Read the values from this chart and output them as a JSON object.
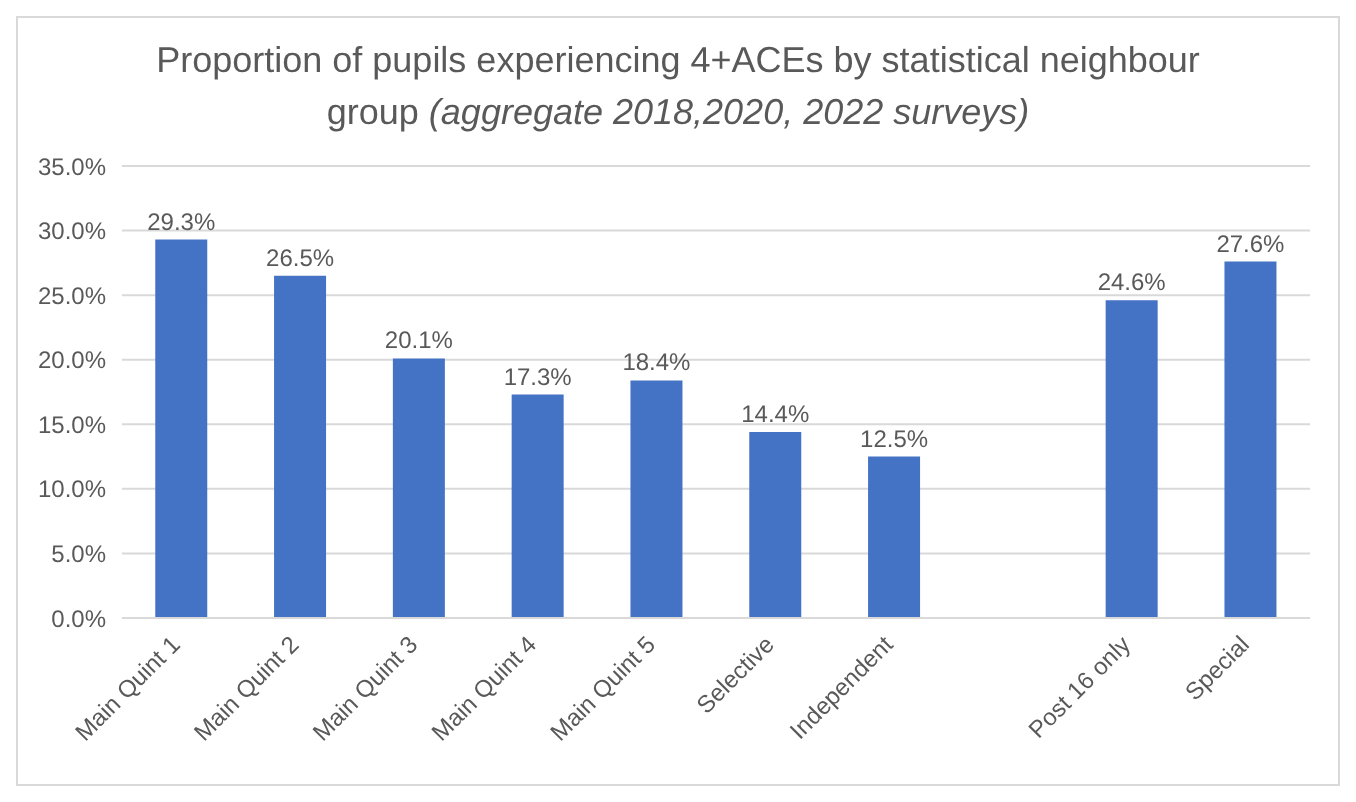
{
  "chart_data": {
    "type": "bar",
    "title": "Proportion of pupils experiencing 4+ACEs by statistical neighbour group",
    "subtitle": "(aggregate 2018,2020, 2022 surveys)",
    "categories": [
      "Main Quint 1",
      "Main Quint 2",
      "Main Quint 3",
      "Main Quint 4",
      "Main Quint 5",
      "Selective",
      "Independent",
      null,
      "Post 16 only",
      "Special"
    ],
    "values": [
      29.3,
      26.5,
      20.1,
      17.3,
      18.4,
      14.4,
      12.5,
      null,
      24.6,
      27.6
    ],
    "value_labels": [
      "29.3%",
      "26.5%",
      "20.1%",
      "17.3%",
      "18.4%",
      "14.4%",
      "12.5%",
      null,
      "24.6%",
      "27.6%"
    ],
    "color": "#4472c4",
    "ylim": [
      0,
      35
    ],
    "yticks": [
      {
        "value": 0,
        "label": "0.0%"
      },
      {
        "value": 5,
        "label": "5.0%"
      },
      {
        "value": 10,
        "label": "10.0%"
      },
      {
        "value": 15,
        "label": "15.0%"
      },
      {
        "value": 20,
        "label": "20.0%"
      },
      {
        "value": 25,
        "label": "25.0%"
      },
      {
        "value": 30,
        "label": "30.0%"
      },
      {
        "value": 35,
        "label": "35.0%"
      }
    ],
    "grid": "y"
  }
}
